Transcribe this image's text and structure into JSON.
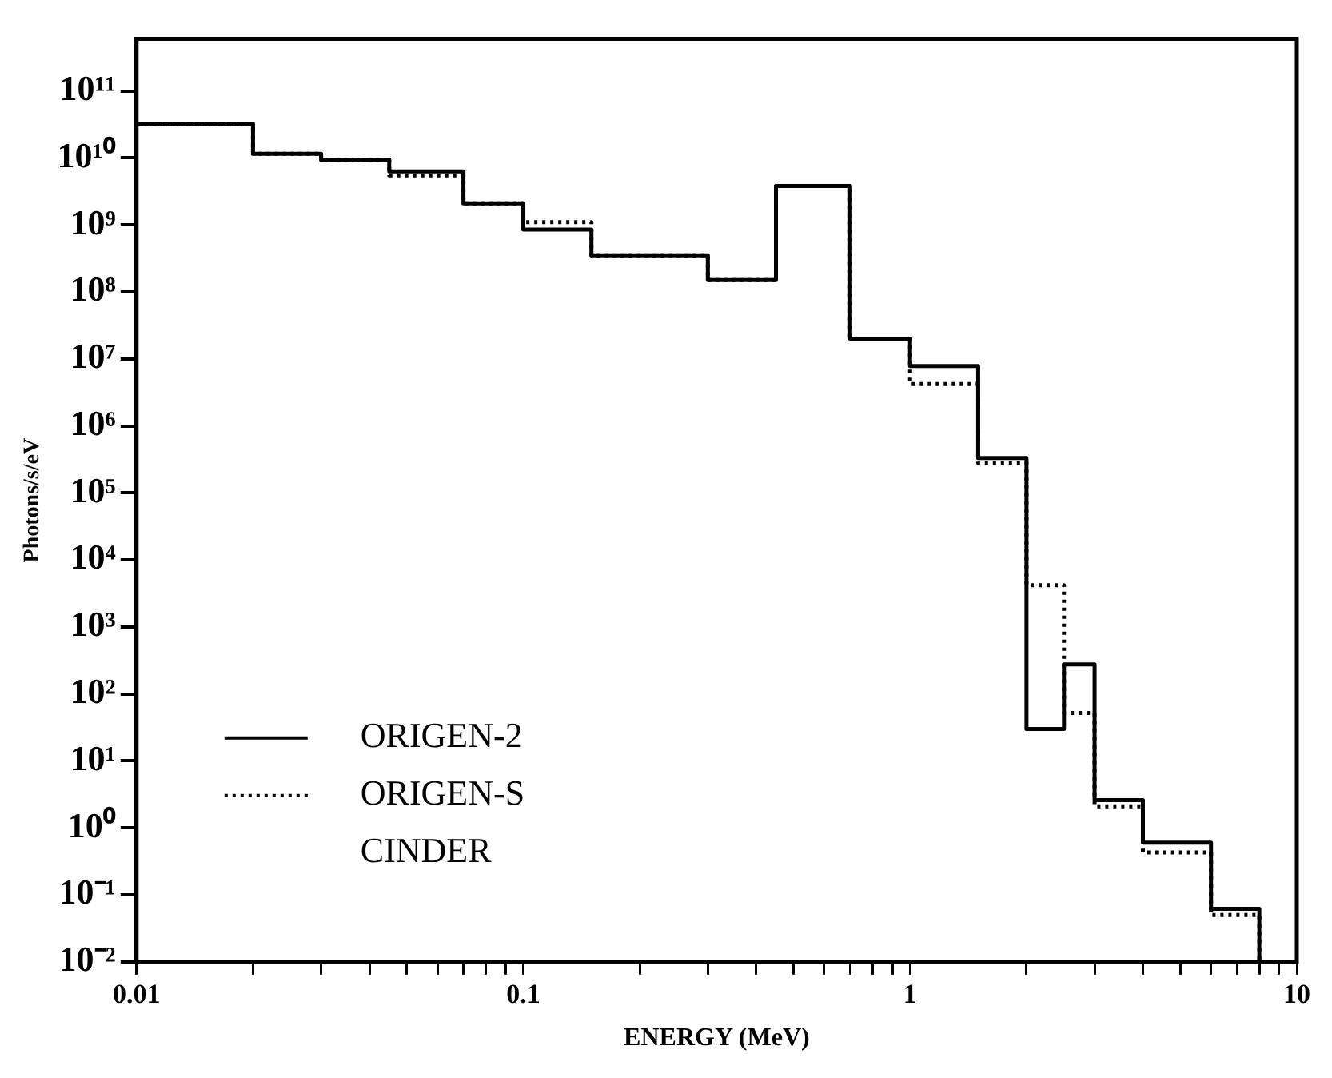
{
  "chart_data": {
    "type": "step",
    "xlabel": "ENERGY (MeV)",
    "ylabel": "Photons/s/eV",
    "log": "xy",
    "x": [
      0.01,
      0.02,
      0.03,
      0.045,
      0.07,
      0.1,
      0.15,
      0.3,
      0.45,
      0.7,
      1,
      1.5,
      2,
      2.5,
      3,
      4,
      6,
      8
    ],
    "series": [
      {
        "name": "ORIGEN-2",
        "color": "#000000",
        "line_style": "solid",
        "values": [
          32000000000,
          11500000000,
          9300000000,
          6300000000,
          2100000000,
          850000000,
          350000000,
          150000000,
          3800000000,
          20000000,
          7800000,
          330000,
          30,
          275,
          2.6,
          0.6,
          0.062,
          0.01
        ]
      },
      {
        "name": "ORIGEN-S",
        "color": "#000000",
        "line_style": "dotted",
        "values": [
          32000000000,
          11500000000,
          9300000000,
          5500000000,
          2100000000,
          1100000000,
          350000000,
          150000000,
          3800000000,
          20000000,
          4200000,
          280000,
          4200,
          52,
          2.1,
          0.43,
          0.05,
          0.01
        ]
      }
    ],
    "annotations": [
      "CINDER"
    ],
    "xlim": [
      0.01,
      10
    ],
    "xticks": [
      0.01,
      {
        "value": 0.02,
        "label": null
      },
      {
        "value": 0.03,
        "label": null
      },
      {
        "value": 0.04,
        "label": null
      },
      {
        "value": 0.05,
        "label": null
      },
      {
        "value": 0.06,
        "label": null
      },
      {
        "value": 0.07,
        "label": null
      },
      {
        "value": 0.08,
        "label": null
      },
      {
        "value": 0.09,
        "label": null
      },
      0.1,
      {
        "value": 0.2,
        "label": null
      },
      {
        "value": 0.3,
        "label": null
      },
      {
        "value": 0.4,
        "label": null
      },
      {
        "value": 0.5,
        "label": null
      },
      {
        "value": 0.6,
        "label": null
      },
      {
        "value": 0.7,
        "label": null
      },
      {
        "value": 0.8,
        "label": null
      },
      {
        "value": 0.9,
        "label": null
      },
      1,
      {
        "value": 2,
        "label": null
      },
      {
        "value": 3,
        "label": null
      },
      {
        "value": 4,
        "label": null
      },
      {
        "value": 5,
        "label": null
      },
      {
        "value": 6,
        "label": null
      },
      {
        "value": 7,
        "label": null
      },
      {
        "value": 8,
        "label": null
      },
      {
        "value": 9,
        "label": null
      },
      10
    ],
    "ylim": [
      0.01,
      600000000000
    ],
    "yticks": [
      {
        "value": 0.01,
        "label": "10⁻²"
      },
      {
        "value": 0.1,
        "label": "10⁻¹"
      },
      {
        "value": 1,
        "label": "10⁰"
      },
      {
        "value": 10,
        "label": "10¹"
      },
      {
        "value": 100,
        "label": "10²"
      },
      {
        "value": 1000,
        "label": "10³"
      },
      {
        "value": 10000,
        "label": "10⁴"
      },
      {
        "value": 100000,
        "label": "10⁵"
      },
      {
        "value": 1000000,
        "label": "10⁶"
      },
      {
        "value": 10000000,
        "label": "10⁷"
      },
      {
        "value": 100000000,
        "label": "10⁸"
      },
      {
        "value": 1000000000,
        "label": "10⁹"
      },
      {
        "value": 10000000000,
        "label": "10¹⁰"
      },
      {
        "value": 100000000000,
        "label": "10¹¹"
      }
    ],
    "legend": "bottom left",
    "grid": false
  }
}
